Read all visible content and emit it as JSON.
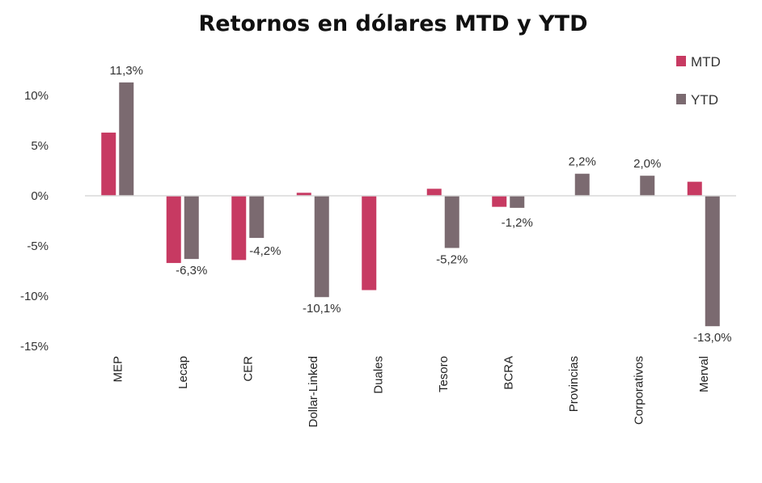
{
  "chart_data": {
    "type": "bar",
    "title": "Retornos en dólares MTD y YTD",
    "categories": [
      "MEP",
      "Lecap",
      "CER",
      "Dollar-Linked",
      "Duales",
      "Tesoro",
      "BCRA",
      "Provincias",
      "Corporativos",
      "Merval"
    ],
    "series": [
      {
        "name": "MTD",
        "color": "#c73a62",
        "values": [
          6.3,
          -6.7,
          -6.4,
          0.3,
          -9.4,
          0.7,
          -1.1,
          0.0,
          0.0,
          1.4
        ]
      },
      {
        "name": "YTD",
        "color": "#7b6a70",
        "values": [
          11.3,
          -6.3,
          -4.2,
          -10.1,
          0.0,
          -5.2,
          -1.2,
          2.2,
          2.0,
          -13.0
        ]
      }
    ],
    "data_labels": [
      {
        "category": "MEP",
        "series": "YTD",
        "text": "11,3%"
      },
      {
        "category": "Lecap",
        "series": "YTD",
        "text": "-6,3%"
      },
      {
        "category": "CER",
        "series": "YTD",
        "text": "-4,2%"
      },
      {
        "category": "Dollar-Linked",
        "series": "YTD",
        "text": "-10,1%"
      },
      {
        "category": "Tesoro",
        "series": "YTD",
        "text": "-5,2%"
      },
      {
        "category": "BCRA",
        "series": "YTD",
        "text": "-1,2%"
      },
      {
        "category": "Provincias",
        "series": "YTD",
        "text": "2,2%"
      },
      {
        "category": "Corporativos",
        "series": "YTD",
        "text": "2,0%"
      },
      {
        "category": "Merval",
        "series": "YTD",
        "text": "-13,0%"
      }
    ],
    "y_ticks": [
      10,
      5,
      0,
      -5,
      -10,
      -15
    ],
    "y_tick_labels": [
      "10%",
      "5%",
      "0%",
      "-5%",
      "-10%",
      "-15%"
    ],
    "ylim": [
      -15,
      12
    ],
    "xlabel": "",
    "ylabel": "",
    "legend_position": "top-right",
    "grid": false
  }
}
